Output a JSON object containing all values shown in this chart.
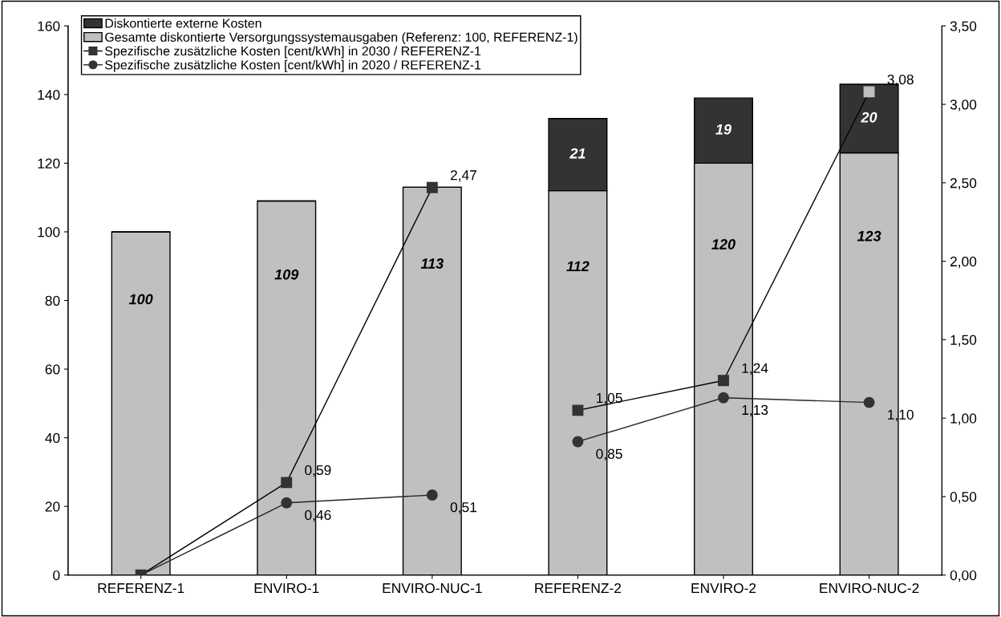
{
  "chart_data": {
    "type": "bar",
    "stacked": true,
    "legend": "top left",
    "categories": [
      "REFERENZ-1",
      "ENVIRO-1",
      "ENVIRO-NUC-1",
      "REFERENZ-2",
      "ENVIRO-2",
      "ENVIRO-NUC-2"
    ],
    "ylim": [
      0,
      160
    ],
    "yticks": [
      0,
      20,
      40,
      60,
      80,
      100,
      120,
      140,
      160
    ],
    "y2lim": [
      0,
      3.5
    ],
    "y2ticks": [
      {
        "value": 0,
        "label": "0,00"
      },
      {
        "value": 0.5,
        "label": "0,50"
      },
      {
        "value": 1,
        "label": "1,00"
      },
      {
        "value": 1.5,
        "label": "1,50"
      },
      {
        "value": 2,
        "label": "2,00"
      },
      {
        "value": 2.5,
        "label": "2,50"
      },
      {
        "value": 3,
        "label": "3,00"
      },
      {
        "value": 3.5,
        "label": "3,50"
      }
    ],
    "series": [
      {
        "name": "Gesamte diskontierte Versorgungssystemausgaben (Referenz: 100, REFERENZ-1)",
        "color": "#c0c0c0",
        "values": [
          100,
          109,
          113,
          112,
          120,
          123
        ],
        "value_labels": [
          "100",
          "109",
          "113",
          "112",
          "120",
          "123"
        ]
      },
      {
        "name": "Diskontierte externe Kosten",
        "color": "#333333",
        "values": [
          null,
          null,
          null,
          21,
          19,
          20
        ],
        "value_labels": [
          null,
          null,
          null,
          "21",
          "19",
          "20"
        ]
      },
      {
        "name": "Spezifische zusätzliche Kosten [cent/kWh] in 2030 / REFERENZ-1",
        "type": "line",
        "axis": "y2",
        "marker": "square",
        "color": "#000000",
        "values": [
          0,
          0.59,
          2.47,
          null,
          null,
          null
        ],
        "value_labels": [
          null,
          "0,59",
          "2,47",
          null,
          null,
          null
        ]
      },
      {
        "type": "line",
        "axis": "y2",
        "marker": "square",
        "color": "#000000",
        "colors": [
          "#333333",
          "#333333",
          "#333333",
          "#333333",
          "#333333",
          "#c0c0c0"
        ],
        "values": [
          null,
          null,
          null,
          1.05,
          1.24,
          3.08
        ],
        "value_labels": [
          null,
          null,
          null,
          "1,05",
          "1,24",
          "3,08"
        ]
      },
      {
        "name": "Spezifische zusätzliche Kosten [cent/kWh] in 2020 / REFERENZ-1",
        "type": "line",
        "axis": "y2",
        "marker": "circle",
        "color": "#262626",
        "values": [
          0,
          0.46,
          0.51,
          null,
          null,
          null
        ],
        "value_labels": [
          null,
          "0,46",
          "0,51",
          null,
          null,
          null
        ]
      },
      {
        "type": "line",
        "axis": "y2",
        "marker": "circle",
        "color": "#262626",
        "values": [
          null,
          null,
          null,
          0.85,
          1.13,
          1.1
        ],
        "value_labels": [
          null,
          null,
          null,
          "0,85",
          "1,13",
          "1,10"
        ]
      }
    ]
  }
}
